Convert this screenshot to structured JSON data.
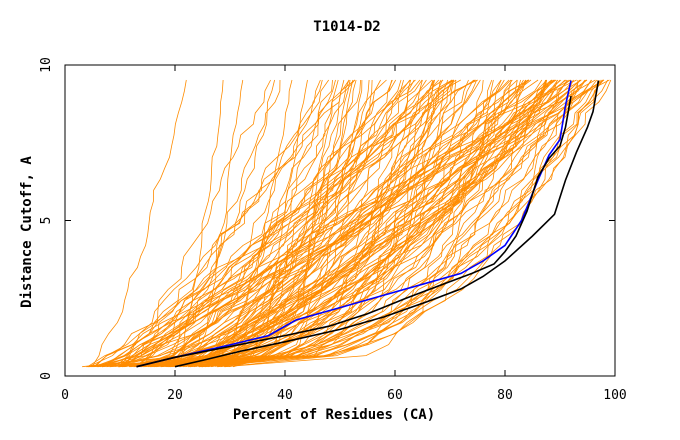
{
  "chart_data": {
    "type": "line",
    "title": "T1014-D2",
    "xlabel": "Percent of Residues (CA)",
    "ylabel": "Distance Cutoff, A",
    "xlim": [
      0,
      100
    ],
    "ylim": [
      0,
      10
    ],
    "x_ticks": [
      0,
      20,
      40,
      60,
      80,
      100
    ],
    "x_tick_labels": [
      "0",
      "20",
      "40",
      "60",
      "80",
      "100"
    ],
    "y_ticks": [
      0,
      5,
      10
    ],
    "y_tick_labels": [
      "0",
      "5",
      "10"
    ],
    "grid": false,
    "colors": {
      "background_series": "#ff8c00",
      "highlight_black": "#000000",
      "highlight_blue": "#0000ff"
    },
    "background_series_count": 140,
    "background_series_note": "many orange GDT curves spanning from ~5% to ~100% of residues",
    "series": [
      {
        "name": "blue-model",
        "color": "#0000ff",
        "x": [
          13,
          20,
          30,
          37,
          42,
          50,
          58,
          66,
          72,
          76,
          80,
          83,
          86,
          88,
          90,
          91,
          92
        ],
        "y": [
          0.3,
          0.6,
          1.0,
          1.3,
          1.8,
          2.2,
          2.6,
          3.0,
          3.3,
          3.7,
          4.2,
          5.0,
          6.3,
          7.1,
          7.6,
          8.7,
          9.5
        ]
      },
      {
        "name": "black-model-1",
        "color": "#000000",
        "x": [
          13,
          20,
          30,
          40,
          48,
          55,
          62,
          68,
          74,
          78,
          80,
          82,
          84,
          86,
          88,
          90,
          91,
          92
        ],
        "y": [
          0.3,
          0.6,
          0.95,
          1.3,
          1.6,
          2.0,
          2.5,
          2.9,
          3.3,
          3.6,
          4.0,
          4.5,
          5.3,
          6.4,
          7.0,
          7.4,
          8.0,
          9.0
        ]
      },
      {
        "name": "black-model-2",
        "color": "#000000",
        "x": [
          20,
          25,
          32,
          40,
          50,
          58,
          66,
          72,
          76,
          80,
          85,
          89,
          91,
          93,
          95,
          96,
          97
        ],
        "y": [
          0.3,
          0.5,
          0.8,
          1.1,
          1.5,
          1.9,
          2.4,
          2.8,
          3.2,
          3.7,
          4.5,
          5.2,
          6.3,
          7.2,
          8.0,
          8.5,
          9.5
        ]
      }
    ]
  }
}
